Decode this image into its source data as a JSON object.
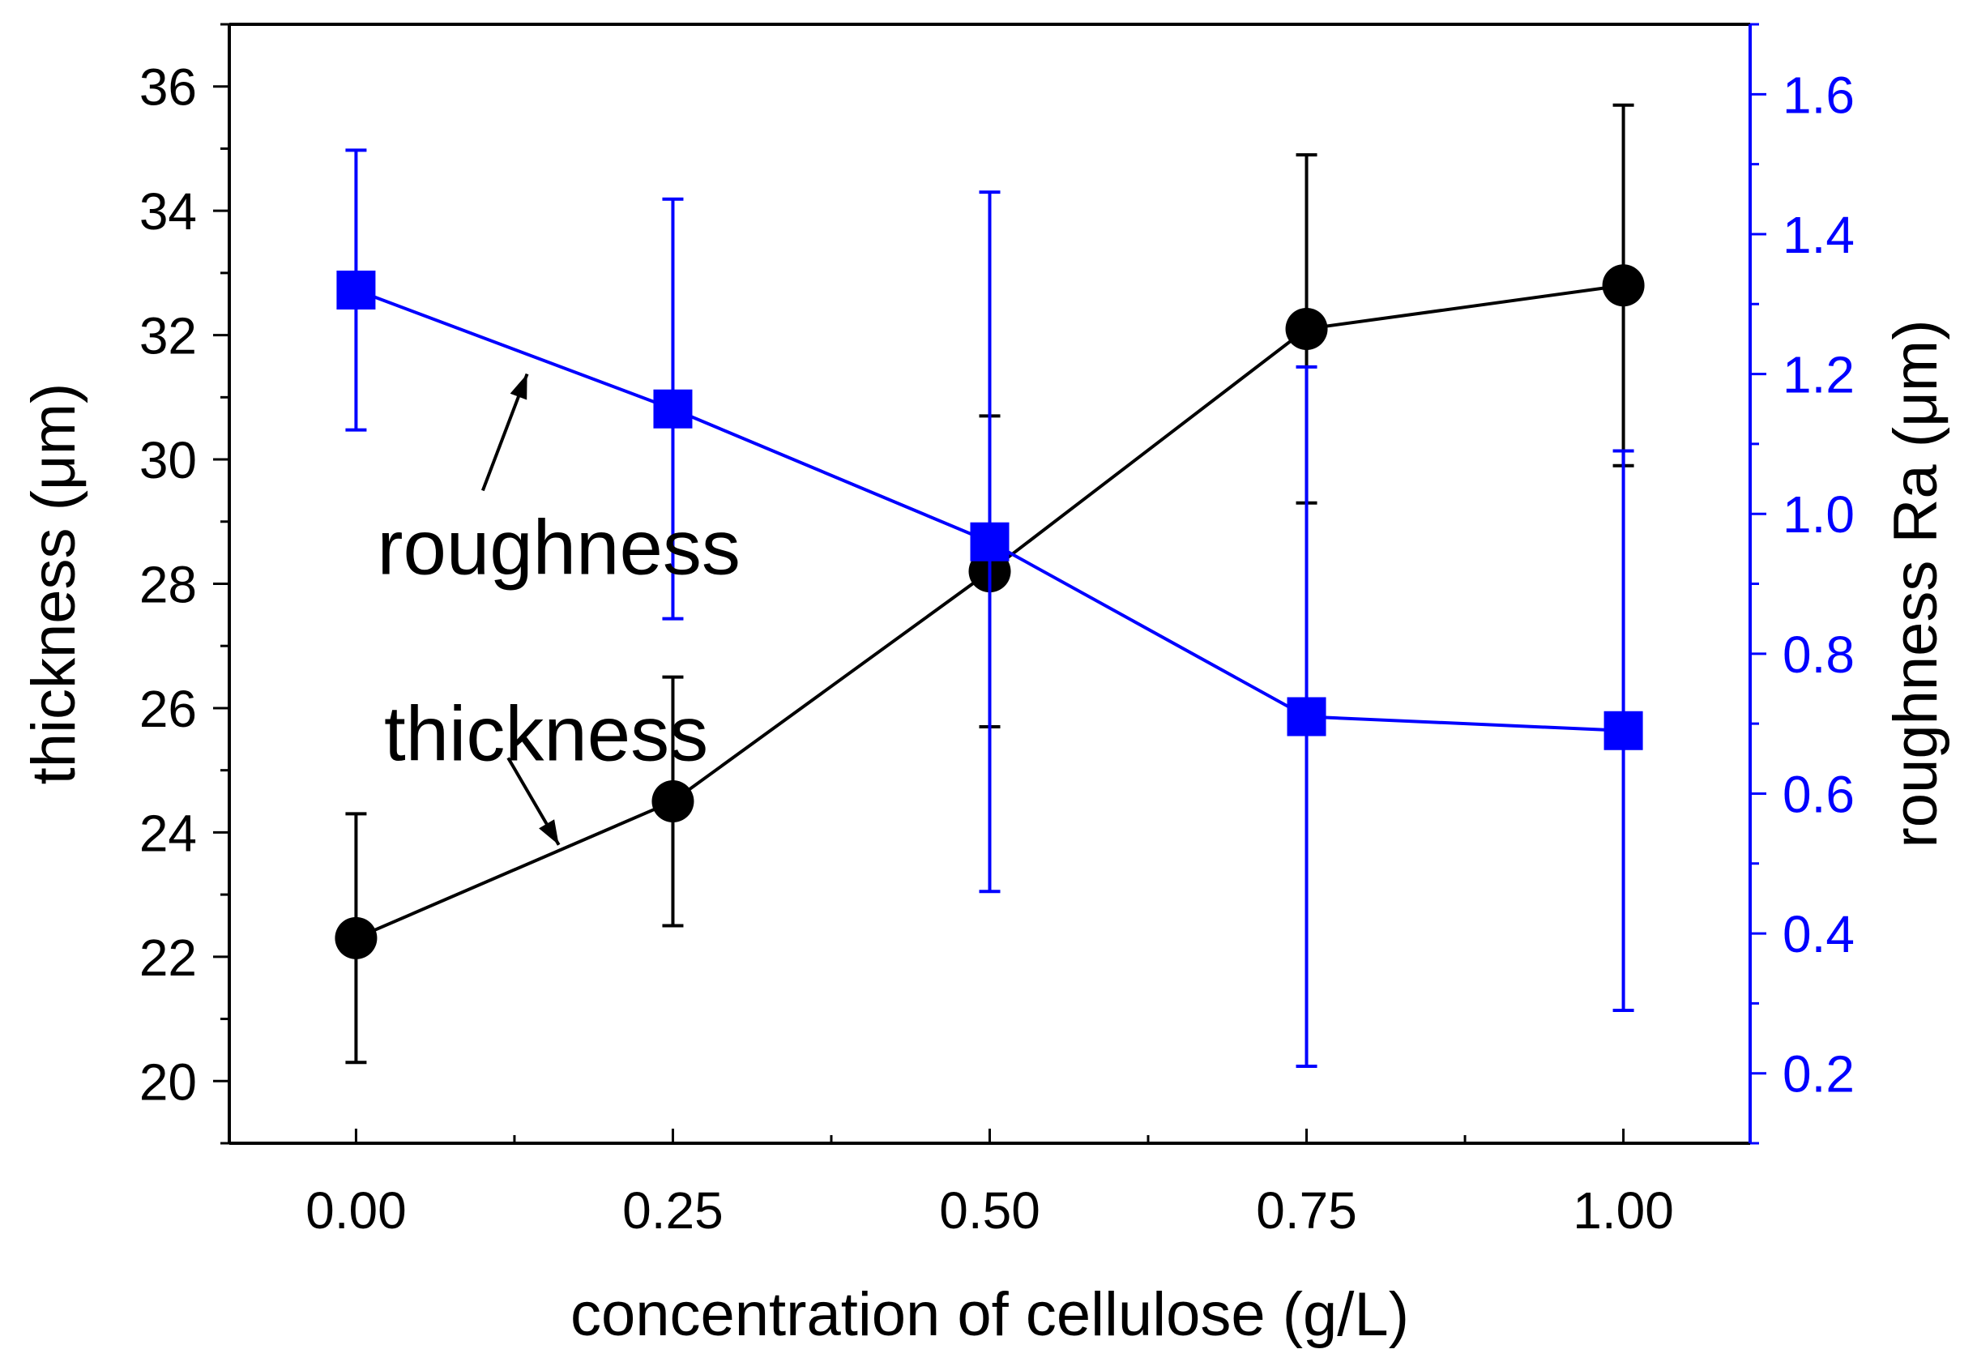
{
  "chart_data": {
    "type": "line",
    "title": "",
    "xlabel": "concentration of cellulose (g/L)",
    "ylabel_left": "thickness (μm)",
    "ylabel_right": "roughness Ra (μm)",
    "xlim": [
      -0.1,
      1.1
    ],
    "ylim_left": [
      19,
      37
    ],
    "ylim_right": [
      0.1,
      1.7
    ],
    "x": [
      0.0,
      0.25,
      0.5,
      0.75,
      1.0
    ],
    "x_tick_labels": [
      "0.00",
      "0.25",
      "0.50",
      "0.75",
      "1.00"
    ],
    "y_left_tick_labels": [
      "20",
      "22",
      "24",
      "26",
      "28",
      "30",
      "32",
      "34",
      "36"
    ],
    "y_right_tick_labels": [
      "0.2",
      "0.4",
      "0.6",
      "0.8",
      "1.0",
      "1.2",
      "1.4",
      "1.6"
    ],
    "series": [
      {
        "name": "thickness",
        "axis": "left",
        "marker": "circle",
        "color": "#000000",
        "values": [
          22.3,
          24.5,
          28.2,
          32.1,
          32.8
        ],
        "error_low": [
          20.3,
          22.5,
          25.7,
          29.3,
          29.9
        ],
        "error_high": [
          24.3,
          26.5,
          30.7,
          34.9,
          35.7
        ]
      },
      {
        "name": "roughness",
        "axis": "right",
        "marker": "square",
        "color": "#0000ff",
        "values": [
          1.32,
          1.15,
          0.96,
          0.71,
          0.69
        ],
        "error_low": [
          1.12,
          0.85,
          0.46,
          0.21,
          0.29
        ],
        "error_high": [
          1.52,
          1.45,
          1.46,
          1.21,
          1.09
        ]
      }
    ],
    "annotations": [
      {
        "text": "roughness",
        "series": "roughness",
        "label_x": 0.16,
        "label_y_left": 28.6,
        "arrow_tip_x": 0.135,
        "arrow_tip_y_right": 1.2
      },
      {
        "text": "thickness",
        "series": "thickness",
        "label_x": 0.15,
        "label_y_left": 25.6,
        "arrow_tip_x": 0.16,
        "arrow_tip_y_left": 23.8
      }
    ],
    "grid": false,
    "legend": "none"
  }
}
